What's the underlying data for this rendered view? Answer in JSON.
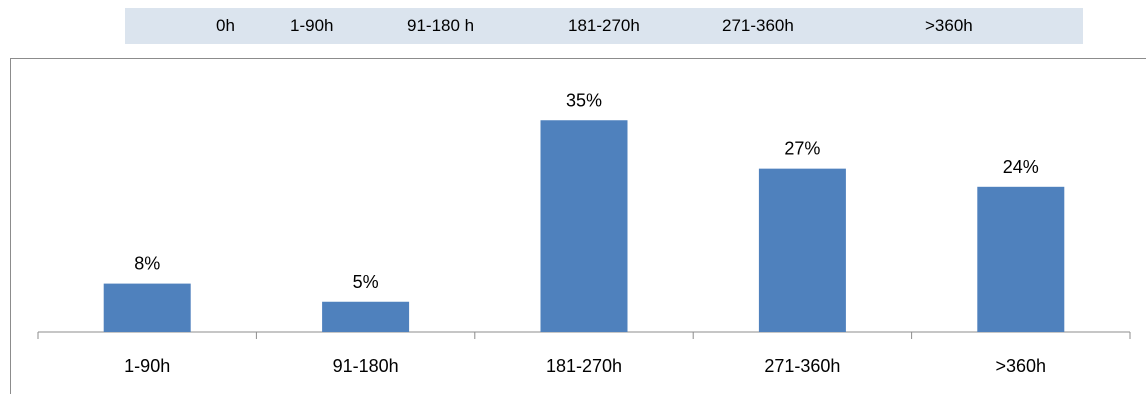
{
  "header_band": {
    "labels": [
      "0h",
      "1-90h",
      "91-180 h",
      "181-270h",
      "271-360h",
      ">360h"
    ]
  },
  "chart_data": {
    "type": "bar",
    "categories": [
      "1-90h",
      "91-180h",
      "181-270h",
      "271-360h",
      ">360h"
    ],
    "values": [
      8,
      5,
      35,
      27,
      24
    ],
    "data_labels": [
      "8%",
      "5%",
      "35%",
      "27%",
      "24%"
    ],
    "title": "",
    "xlabel": "",
    "ylabel": "",
    "ylim": [
      0,
      40
    ],
    "grid": false,
    "legend": "none",
    "bar_color": "#4f81bd"
  }
}
